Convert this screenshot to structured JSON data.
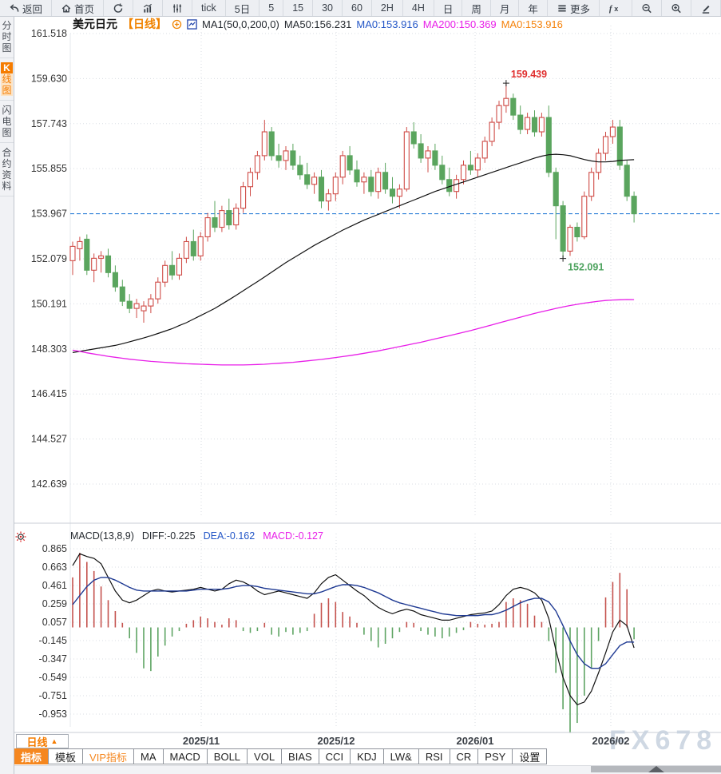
{
  "toolbar": {
    "items": [
      {
        "icon": "back-icon",
        "label": "返回"
      },
      {
        "icon": "home-icon",
        "label": "首页"
      },
      {
        "icon": "refresh-icon",
        "label": ""
      },
      {
        "icon": "bar-chart-icon",
        "label": ""
      },
      {
        "icon": "candles-icon",
        "label": ""
      },
      {
        "label": "tick"
      },
      {
        "label": "5日"
      },
      {
        "label": "5"
      },
      {
        "label": "15"
      },
      {
        "label": "30"
      },
      {
        "label": "60"
      },
      {
        "label": "2H"
      },
      {
        "label": "4H"
      },
      {
        "label": "日"
      },
      {
        "label": "周"
      },
      {
        "label": "月"
      },
      {
        "label": "年"
      },
      {
        "icon": "menu-icon",
        "label": "更多"
      },
      {
        "icon": "fx-icon",
        "label": ""
      },
      {
        "icon": "zoom-out-icon",
        "label": ""
      },
      {
        "icon": "zoom-in-icon",
        "label": ""
      },
      {
        "icon": "pencil-icon",
        "label": ""
      }
    ]
  },
  "sidebar": {
    "items": [
      {
        "label": "分时图",
        "active": false
      },
      {
        "label": "K线图",
        "active": true
      },
      {
        "label": "闪电图",
        "active": false
      },
      {
        "label": "合约资料",
        "active": false
      }
    ]
  },
  "chart_header": {
    "symbol": "美元日元",
    "period": "【日线】",
    "ma_settings": "MA1(50,0,200,0)",
    "ma50": "MA50:156.231",
    "ma0_blue": "MA0:153.916",
    "ma200": "MA200:150.369",
    "ma0_orange": "MA0:153.916"
  },
  "macd_header": {
    "name": "MACD(13,8,9)",
    "diff": "DIFF:-0.225",
    "dea": "DEA:-0.162",
    "macd": "MACD:-0.127"
  },
  "bottom": {
    "period_button": "日线",
    "period_arrow": "▲",
    "tabs": [
      {
        "label": "指标",
        "state": "active"
      },
      {
        "label": "模板",
        "state": ""
      },
      {
        "label": "VIP指标",
        "state": "vip"
      },
      {
        "label": "MA",
        "state": ""
      },
      {
        "label": "MACD",
        "state": ""
      },
      {
        "label": "BOLL",
        "state": ""
      },
      {
        "label": "VOL",
        "state": ""
      },
      {
        "label": "BIAS",
        "state": ""
      },
      {
        "label": "CCI",
        "state": ""
      },
      {
        "label": "KDJ",
        "state": ""
      },
      {
        "label": "LW&",
        "state": ""
      },
      {
        "label": "RSI",
        "state": ""
      },
      {
        "label": "CR",
        "state": ""
      },
      {
        "label": "PSY",
        "state": ""
      },
      {
        "label": "设置",
        "state": ""
      }
    ]
  },
  "watermark": "FX678",
  "chart_data": [
    {
      "type": "candlestick",
      "title": "美元日元 日线",
      "ylim": [
        142.639,
        161.518
      ],
      "y_ticks": [
        161.518,
        159.63,
        157.743,
        155.855,
        153.967,
        152.079,
        150.191,
        148.303,
        146.415,
        144.527,
        142.639
      ],
      "x_ticks": [
        {
          "label": "2025/11",
          "x": 252
        },
        {
          "label": "2025/12",
          "x": 421
        },
        {
          "label": "2026/01",
          "x": 595
        },
        {
          "label": "2026/02",
          "x": 765
        }
      ],
      "current_price": 153.967,
      "colors": {
        "up": "#cf4b46",
        "down": "#5aa55e",
        "ma50": "#111111",
        "ma200": "#e81ee8",
        "price_line": "#2f80d8"
      },
      "annotations": [
        {
          "text": "159.439",
          "price": 159.439,
          "index": 61,
          "color": "#e02f2f",
          "pos": "above"
        },
        {
          "text": "152.091",
          "price": 152.091,
          "index": 69,
          "color": "#4ea35f",
          "pos": "below"
        }
      ],
      "candles": [
        [
          152.0,
          152.8,
          151.4,
          152.6
        ],
        [
          152.5,
          153.0,
          152.0,
          152.8
        ],
        [
          152.9,
          153.1,
          151.4,
          151.6
        ],
        [
          151.6,
          152.3,
          151.1,
          152.1
        ],
        [
          152.1,
          152.4,
          151.5,
          152.2
        ],
        [
          152.2,
          152.5,
          151.3,
          151.5
        ],
        [
          151.5,
          151.8,
          150.7,
          150.9
        ],
        [
          150.9,
          151.2,
          150.1,
          150.3
        ],
        [
          150.3,
          150.6,
          149.8,
          150.0
        ],
        [
          150.0,
          150.4,
          149.6,
          150.2
        ],
        [
          149.9,
          150.3,
          149.4,
          150.1
        ],
        [
          150.1,
          150.6,
          149.8,
          150.4
        ],
        [
          150.4,
          151.3,
          150.2,
          151.1
        ],
        [
          151.1,
          152.0,
          150.9,
          151.8
        ],
        [
          151.8,
          152.4,
          151.2,
          151.4
        ],
        [
          151.4,
          152.3,
          151.2,
          152.1
        ],
        [
          152.1,
          153.0,
          151.9,
          152.8
        ],
        [
          152.8,
          153.3,
          152.0,
          152.2
        ],
        [
          152.2,
          153.2,
          152.0,
          153.0
        ],
        [
          153.0,
          154.0,
          152.8,
          153.8
        ],
        [
          153.8,
          154.5,
          153.2,
          153.4
        ],
        [
          153.4,
          154.3,
          153.2,
          154.1
        ],
        [
          154.1,
          154.6,
          153.3,
          153.5
        ],
        [
          153.5,
          154.4,
          153.3,
          154.2
        ],
        [
          154.2,
          155.3,
          154.0,
          155.1
        ],
        [
          155.1,
          155.9,
          154.7,
          155.7
        ],
        [
          155.7,
          156.6,
          155.4,
          156.4
        ],
        [
          156.4,
          157.9,
          156.2,
          157.4
        ],
        [
          157.4,
          157.6,
          156.2,
          156.4
        ],
        [
          156.4,
          156.9,
          155.9,
          156.2
        ],
        [
          156.2,
          156.8,
          155.8,
          156.6
        ],
        [
          156.6,
          156.9,
          155.8,
          156.0
        ],
        [
          156.0,
          156.4,
          155.4,
          155.6
        ],
        [
          155.6,
          156.1,
          155.0,
          155.2
        ],
        [
          155.2,
          155.7,
          154.8,
          155.5
        ],
        [
          155.5,
          155.8,
          154.2,
          154.5
        ],
        [
          154.5,
          155.0,
          154.1,
          154.8
        ],
        [
          154.8,
          155.7,
          154.5,
          155.5
        ],
        [
          155.5,
          156.6,
          155.2,
          156.4
        ],
        [
          156.4,
          156.8,
          155.6,
          155.8
        ],
        [
          155.8,
          156.2,
          155.1,
          155.3
        ],
        [
          155.3,
          155.7,
          154.8,
          155.5
        ],
        [
          155.5,
          155.8,
          154.7,
          154.9
        ],
        [
          154.9,
          155.9,
          154.6,
          155.7
        ],
        [
          155.7,
          156.1,
          154.8,
          155.0
        ],
        [
          155.0,
          155.5,
          154.4,
          154.7
        ],
        [
          154.7,
          155.2,
          154.2,
          155.0
        ],
        [
          155.0,
          157.6,
          154.9,
          157.4
        ],
        [
          157.4,
          157.8,
          156.7,
          156.9
        ],
        [
          156.9,
          157.3,
          156.1,
          156.3
        ],
        [
          156.3,
          156.8,
          155.7,
          156.6
        ],
        [
          156.6,
          156.9,
          155.8,
          156.0
        ],
        [
          156.0,
          156.4,
          155.2,
          155.4
        ],
        [
          155.4,
          155.9,
          154.7,
          154.9
        ],
        [
          154.9,
          155.6,
          154.6,
          155.4
        ],
        [
          155.4,
          156.2,
          155.2,
          156.0
        ],
        [
          156.0,
          156.6,
          155.6,
          155.8
        ],
        [
          155.8,
          156.5,
          155.5,
          156.3
        ],
        [
          156.3,
          157.2,
          156.1,
          157.0
        ],
        [
          157.0,
          158.0,
          156.8,
          157.8
        ],
        [
          157.8,
          158.7,
          157.5,
          158.5
        ],
        [
          158.5,
          159.439,
          158.2,
          158.8
        ],
        [
          158.8,
          159.0,
          157.9,
          158.1
        ],
        [
          158.1,
          158.5,
          157.3,
          157.5
        ],
        [
          157.5,
          158.2,
          157.3,
          158.0
        ],
        [
          158.0,
          158.3,
          157.2,
          157.4
        ],
        [
          157.4,
          158.2,
          157.2,
          158.0
        ],
        [
          158.0,
          158.5,
          155.5,
          155.7
        ],
        [
          155.7,
          155.9,
          152.9,
          154.3
        ],
        [
          154.3,
          154.5,
          152.091,
          152.4
        ],
        [
          152.4,
          153.5,
          152.2,
          153.4
        ],
        [
          153.4,
          153.6,
          152.8,
          153.0
        ],
        [
          153.0,
          154.9,
          152.9,
          154.7
        ],
        [
          154.7,
          155.9,
          154.5,
          155.7
        ],
        [
          155.7,
          156.7,
          155.4,
          156.5
        ],
        [
          156.5,
          157.4,
          156.2,
          157.2
        ],
        [
          157.2,
          157.9,
          156.9,
          157.6
        ],
        [
          157.6,
          157.9,
          155.8,
          156.0
        ],
        [
          156.0,
          156.2,
          154.5,
          154.7
        ],
        [
          154.7,
          154.9,
          153.6,
          153.967
        ]
      ],
      "series": [
        {
          "name": "MA50",
          "color": "#111111",
          "values": [
            148.15,
            148.2,
            148.25,
            148.3,
            148.35,
            148.4,
            148.45,
            148.52,
            148.6,
            148.68,
            148.76,
            148.85,
            148.95,
            149.05,
            149.15,
            149.28,
            149.4,
            149.55,
            149.7,
            149.85,
            150.0,
            150.18,
            150.36,
            150.55,
            150.74,
            150.93,
            151.12,
            151.32,
            151.52,
            151.72,
            151.92,
            152.1,
            152.28,
            152.46,
            152.64,
            152.8,
            152.96,
            153.12,
            153.28,
            153.42,
            153.56,
            153.7,
            153.82,
            153.94,
            154.06,
            154.18,
            154.3,
            154.42,
            154.54,
            154.66,
            154.78,
            154.9,
            155.0,
            155.1,
            155.2,
            155.3,
            155.4,
            155.5,
            155.6,
            155.7,
            155.8,
            155.9,
            156.0,
            156.1,
            156.2,
            156.3,
            156.38,
            156.44,
            156.46,
            156.44,
            156.4,
            156.32,
            156.24,
            156.18,
            156.14,
            156.14,
            156.16,
            156.2,
            156.22,
            156.231
          ]
        },
        {
          "name": "MA200",
          "color": "#e81ee8",
          "values": [
            148.25,
            148.2,
            148.14,
            148.09,
            148.04,
            147.99,
            147.95,
            147.91,
            147.87,
            147.84,
            147.81,
            147.78,
            147.76,
            147.74,
            147.72,
            147.7,
            147.68,
            147.67,
            147.66,
            147.65,
            147.64,
            147.63,
            147.63,
            147.63,
            147.63,
            147.64,
            147.65,
            147.66,
            147.68,
            147.7,
            147.72,
            147.74,
            147.77,
            147.8,
            147.83,
            147.86,
            147.9,
            147.94,
            147.98,
            148.02,
            148.07,
            148.12,
            148.17,
            148.22,
            148.28,
            148.34,
            148.4,
            148.46,
            148.52,
            148.58,
            148.65,
            148.72,
            148.79,
            148.86,
            148.93,
            149.0,
            149.07,
            149.15,
            149.23,
            149.31,
            149.39,
            149.47,
            149.55,
            149.63,
            149.71,
            149.79,
            149.86,
            149.93,
            150.0,
            150.06,
            150.12,
            150.17,
            150.22,
            150.26,
            150.3,
            150.33,
            150.35,
            150.36,
            150.37,
            150.369
          ]
        }
      ]
    },
    {
      "type": "macd",
      "params": "(13,8,9)",
      "ylim": [
        -0.953,
        0.865
      ],
      "y_ticks": [
        0.865,
        0.663,
        0.461,
        0.259,
        0.057,
        -0.145,
        -0.347,
        -0.549,
        -0.751,
        -0.953
      ],
      "latest": {
        "diff": -0.225,
        "dea": -0.162,
        "macd": -0.127
      },
      "colors": {
        "hist_pos": "#c4524e",
        "hist_neg": "#5ea463",
        "diff": "#111111",
        "dea": "#1f3a93"
      },
      "histogram": [
        0.55,
        0.82,
        0.72,
        0.62,
        0.45,
        0.3,
        0.18,
        0.05,
        -0.12,
        -0.28,
        -0.45,
        -0.48,
        -0.32,
        -0.2,
        -0.1,
        -0.04,
        0.04,
        0.08,
        0.12,
        0.1,
        0.06,
        0.03,
        0.1,
        0.08,
        -0.04,
        -0.06,
        -0.04,
        0.05,
        -0.08,
        -0.1,
        -0.05,
        -0.08,
        -0.06,
        -0.04,
        0.15,
        0.27,
        0.32,
        0.28,
        0.17,
        0.12,
        0.05,
        -0.08,
        -0.15,
        -0.22,
        -0.18,
        -0.12,
        -0.05,
        0.06,
        0.05,
        -0.04,
        -0.08,
        -0.1,
        -0.12,
        -0.1,
        -0.06,
        -0.03,
        0.06,
        0.04,
        0.03,
        0.04,
        0.06,
        0.28,
        0.32,
        0.3,
        0.26,
        0.13,
        0.06,
        -0.15,
        -0.5,
        -0.9,
        -1.16,
        -1.05,
        -0.75,
        -0.45,
        -0.15,
        0.33,
        0.5,
        0.6,
        0.42,
        -0.13
      ],
      "series": [
        {
          "name": "DIFF",
          "color": "#111111",
          "values": [
            0.68,
            0.81,
            0.78,
            0.76,
            0.7,
            0.55,
            0.4,
            0.3,
            0.27,
            0.3,
            0.35,
            0.4,
            0.42,
            0.4,
            0.39,
            0.4,
            0.41,
            0.42,
            0.44,
            0.42,
            0.4,
            0.42,
            0.48,
            0.52,
            0.5,
            0.46,
            0.4,
            0.36,
            0.38,
            0.4,
            0.38,
            0.36,
            0.34,
            0.32,
            0.38,
            0.48,
            0.55,
            0.58,
            0.52,
            0.46,
            0.4,
            0.35,
            0.28,
            0.22,
            0.18,
            0.15,
            0.18,
            0.2,
            0.18,
            0.14,
            0.12,
            0.1,
            0.08,
            0.08,
            0.1,
            0.12,
            0.14,
            0.15,
            0.16,
            0.18,
            0.25,
            0.35,
            0.42,
            0.44,
            0.42,
            0.38,
            0.3,
            0.1,
            -0.25,
            -0.55,
            -0.75,
            -0.85,
            -0.82,
            -0.7,
            -0.5,
            -0.28,
            -0.05,
            0.08,
            0.02,
            -0.225
          ]
        },
        {
          "name": "DEA",
          "color": "#1f3a93",
          "values": [
            0.25,
            0.35,
            0.45,
            0.52,
            0.55,
            0.55,
            0.52,
            0.48,
            0.44,
            0.41,
            0.4,
            0.4,
            0.4,
            0.4,
            0.4,
            0.4,
            0.4,
            0.41,
            0.42,
            0.42,
            0.42,
            0.42,
            0.43,
            0.45,
            0.46,
            0.46,
            0.45,
            0.43,
            0.42,
            0.41,
            0.4,
            0.39,
            0.38,
            0.37,
            0.37,
            0.39,
            0.42,
            0.45,
            0.47,
            0.47,
            0.46,
            0.44,
            0.41,
            0.38,
            0.34,
            0.3,
            0.27,
            0.25,
            0.23,
            0.21,
            0.19,
            0.17,
            0.15,
            0.14,
            0.13,
            0.13,
            0.13,
            0.13,
            0.14,
            0.14,
            0.16,
            0.19,
            0.23,
            0.27,
            0.3,
            0.32,
            0.32,
            0.28,
            0.18,
            0.02,
            -0.15,
            -0.3,
            -0.4,
            -0.45,
            -0.45,
            -0.4,
            -0.3,
            -0.2,
            -0.16,
            -0.162
          ]
        }
      ]
    }
  ]
}
